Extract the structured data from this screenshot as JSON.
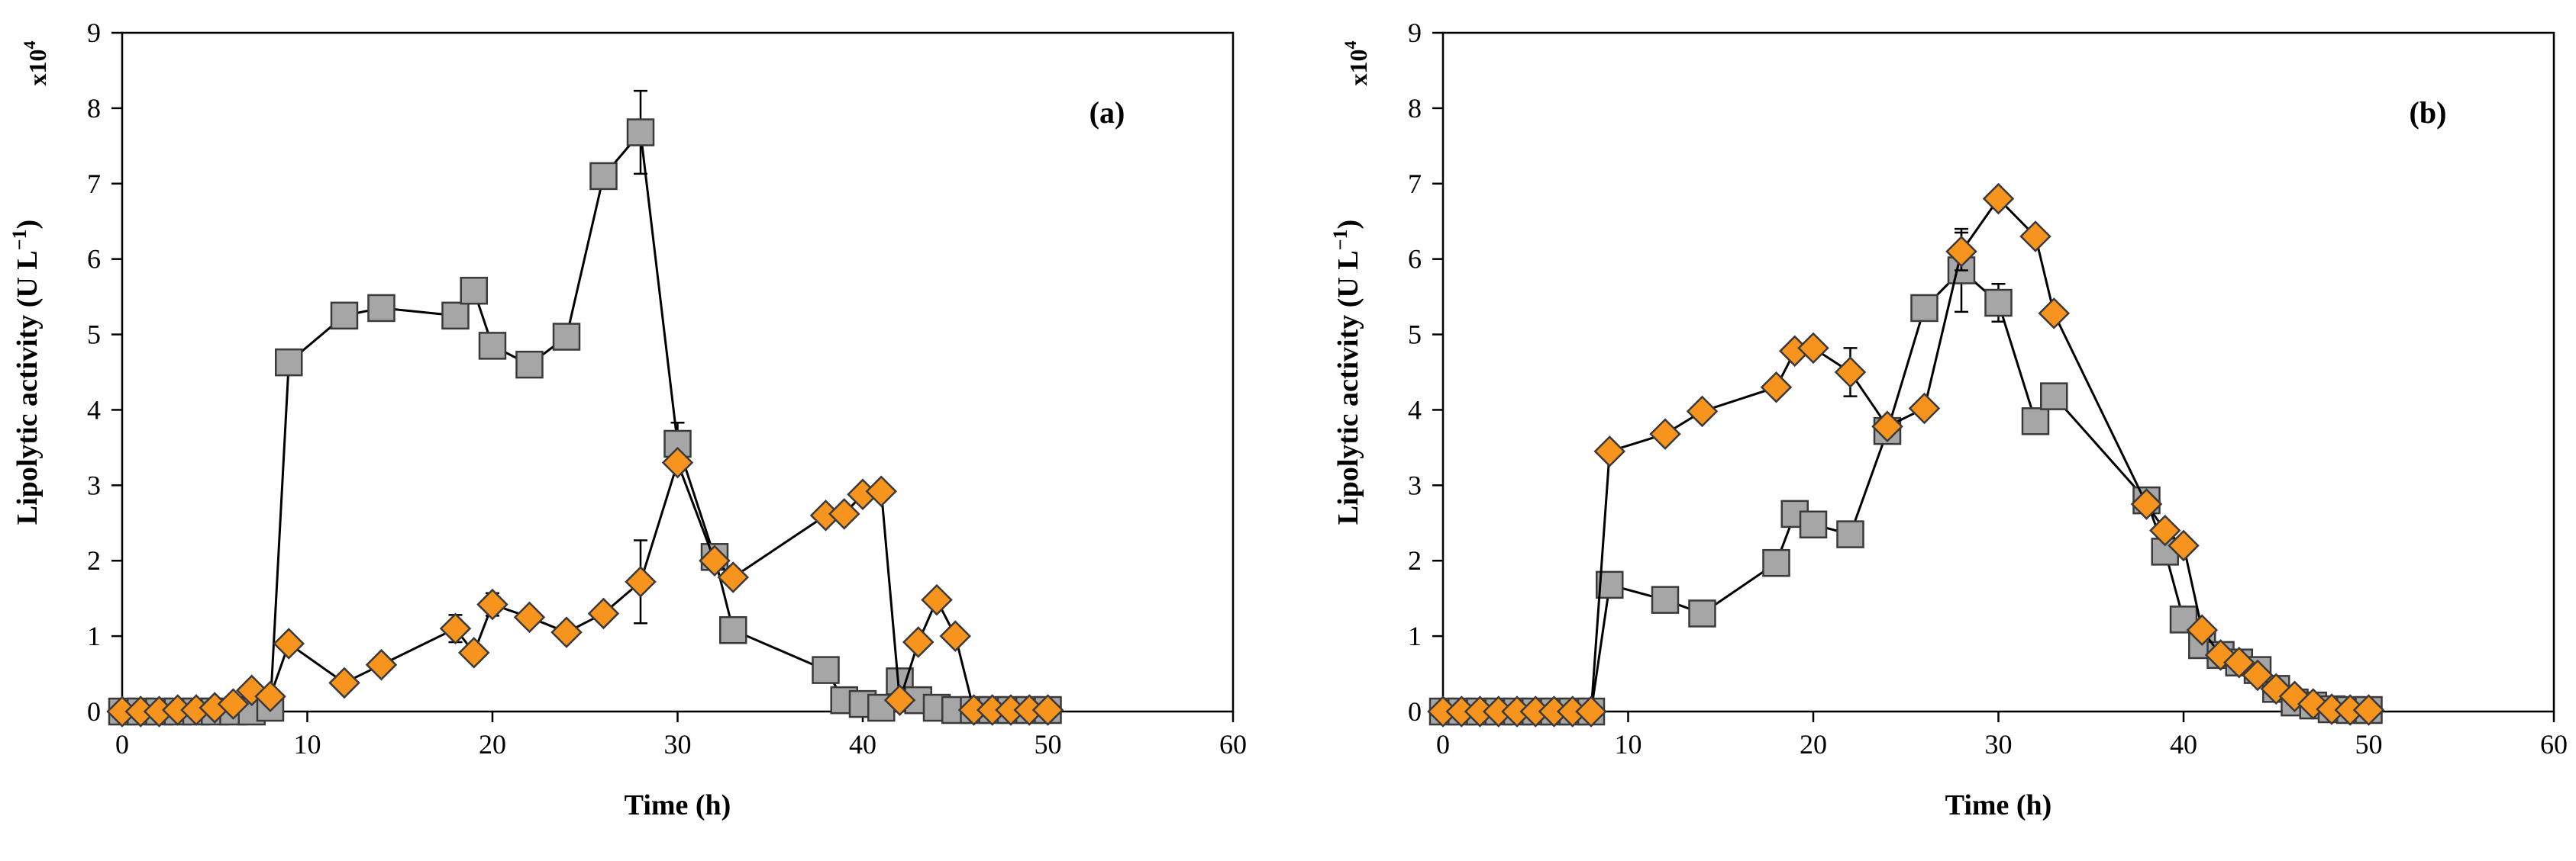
{
  "chart_data": [
    {
      "type": "line",
      "panel_label": "(a)",
      "xlabel": "Time (h)",
      "ylabel": "Lipolytic  activity (U L",
      "ylabel_sup": "−1",
      "ylabel_close": ")",
      "multiplier": "x10",
      "multiplier_sup": "4",
      "xlim": [
        0,
        60
      ],
      "ylim": [
        0,
        9
      ],
      "x_ticks": [
        "0",
        "10",
        "20",
        "30",
        "40",
        "50",
        "60"
      ],
      "y_ticks": [
        "0",
        "1",
        "2",
        "3",
        "4",
        "5",
        "6",
        "7",
        "8",
        "9"
      ],
      "grid": false,
      "series": [
        {
          "name": "squares",
          "marker": "square",
          "color": "#a6a6a6",
          "x": [
            0,
            1,
            2,
            3,
            4,
            5,
            6,
            7,
            8,
            9,
            12,
            14,
            18,
            19,
            20,
            22,
            24,
            26,
            28,
            30,
            32,
            33,
            38,
            39,
            40,
            41,
            42,
            43,
            44,
            45,
            46,
            47,
            48,
            49,
            50
          ],
          "y": [
            0,
            0,
            0,
            0,
            0,
            0,
            0,
            0,
            0.05,
            4.63,
            5.25,
            5.35,
            5.25,
            5.58,
            4.85,
            4.6,
            4.97,
            7.1,
            7.68,
            3.55,
            2.05,
            1.08,
            0.55,
            0.15,
            0.1,
            0.05,
            0.4,
            0.15,
            0.05,
            0.02,
            0.02,
            0.02,
            0.02,
            0.02,
            0.02
          ],
          "error": [
            0,
            0,
            0,
            0,
            0,
            0,
            0,
            0,
            0,
            0,
            0,
            0,
            0,
            0,
            0,
            0,
            0,
            0,
            0.55,
            0.28,
            0,
            0,
            0,
            0,
            0,
            0,
            0,
            0,
            0,
            0,
            0,
            0,
            0,
            0,
            0
          ]
        },
        {
          "name": "diamonds",
          "marker": "diamond",
          "color": "#f7941d",
          "x": [
            0,
            1,
            2,
            3,
            4,
            5,
            6,
            7,
            8,
            9,
            12,
            14,
            18,
            19,
            20,
            22,
            24,
            26,
            28,
            30,
            32,
            33,
            38,
            39,
            40,
            41,
            42,
            43,
            44,
            45,
            46,
            47,
            48,
            49,
            50
          ],
          "y": [
            0,
            0,
            0,
            0.02,
            0.02,
            0.05,
            0.1,
            0.28,
            0.2,
            0.9,
            0.38,
            0.62,
            1.1,
            0.78,
            1.42,
            1.25,
            1.05,
            1.3,
            1.72,
            3.3,
            2.0,
            1.78,
            2.6,
            2.62,
            2.88,
            2.92,
            0.15,
            0.92,
            1.48,
            1.0,
            0.02,
            0.02,
            0.02,
            0.02,
            0.02
          ],
          "error": [
            0,
            0,
            0,
            0,
            0,
            0,
            0,
            0,
            0,
            0,
            0,
            0,
            0.18,
            0,
            0.15,
            0,
            0,
            0,
            0.55,
            0,
            0,
            0,
            0,
            0,
            0,
            0,
            0,
            0,
            0,
            0,
            0,
            0,
            0,
            0,
            0
          ]
        }
      ]
    },
    {
      "type": "line",
      "panel_label": "(b)",
      "xlabel": "Time (h)",
      "ylabel": "Lipolytic  activity (U L",
      "ylabel_sup": "−1",
      "ylabel_close": ")",
      "multiplier": "x10",
      "multiplier_sup": "4",
      "xlim": [
        0,
        60
      ],
      "ylim": [
        0,
        9
      ],
      "x_ticks": [
        "0",
        "10",
        "20",
        "30",
        "40",
        "50",
        "60"
      ],
      "y_ticks": [
        "0",
        "1",
        "2",
        "3",
        "4",
        "5",
        "6",
        "7",
        "8",
        "9"
      ],
      "grid": false,
      "series": [
        {
          "name": "squares",
          "marker": "square",
          "color": "#a6a6a6",
          "x": [
            0,
            1,
            2,
            3,
            4,
            5,
            6,
            7,
            8,
            9,
            12,
            14,
            18,
            19,
            20,
            22,
            24,
            26,
            28,
            30,
            32,
            33,
            38,
            39,
            40,
            41,
            42,
            43,
            44,
            45,
            46,
            47,
            48,
            49,
            50
          ],
          "y": [
            0,
            0,
            0,
            0,
            0,
            0,
            0,
            0,
            0,
            1.68,
            1.48,
            1.3,
            1.97,
            2.62,
            2.48,
            2.35,
            3.72,
            5.35,
            5.85,
            5.42,
            3.85,
            4.18,
            2.8,
            2.12,
            1.22,
            0.88,
            0.75,
            0.65,
            0.55,
            0.3,
            0.12,
            0.08,
            0.03,
            0.02,
            0.02
          ],
          "error": [
            0,
            0,
            0,
            0,
            0,
            0,
            0,
            0,
            0,
            0,
            0,
            0,
            0.15,
            0,
            0,
            0,
            0,
            0,
            0.55,
            0.25,
            0,
            0,
            0,
            0,
            0,
            0,
            0,
            0,
            0,
            0,
            0,
            0,
            0,
            0,
            0
          ]
        },
        {
          "name": "diamonds",
          "marker": "diamond",
          "color": "#f7941d",
          "x": [
            0,
            1,
            2,
            3,
            4,
            5,
            6,
            7,
            8,
            9,
            12,
            14,
            18,
            19,
            20,
            22,
            24,
            26,
            28,
            30,
            32,
            33,
            38,
            39,
            40,
            41,
            42,
            43,
            44,
            45,
            46,
            47,
            48,
            49,
            50
          ],
          "y": [
            0,
            0,
            0,
            0,
            0,
            0,
            0,
            0,
            0,
            3.45,
            3.68,
            3.98,
            4.3,
            4.78,
            4.82,
            4.5,
            3.78,
            4.02,
            6.1,
            6.8,
            6.3,
            5.28,
            2.75,
            2.4,
            2.2,
            1.08,
            0.75,
            0.65,
            0.48,
            0.3,
            0.2,
            0.1,
            0.03,
            0.02,
            0.02
          ],
          "error": [
            0,
            0,
            0,
            0,
            0,
            0,
            0,
            0,
            0,
            0,
            0,
            0,
            0,
            0,
            0,
            0.32,
            0,
            0,
            0.25,
            0,
            0,
            0,
            0,
            0,
            0,
            0,
            0,
            0,
            0,
            0,
            0,
            0,
            0,
            0,
            0
          ]
        }
      ]
    }
  ]
}
